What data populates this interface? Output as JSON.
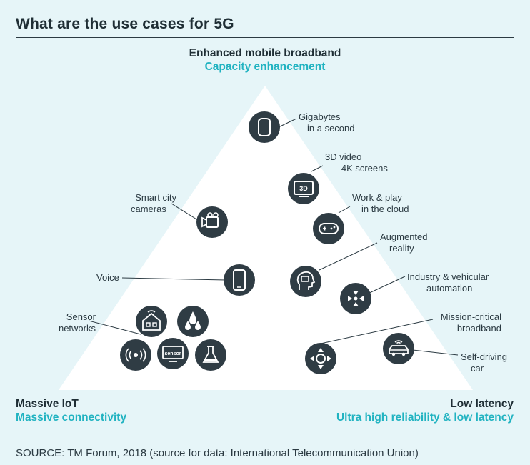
{
  "title": "What are the use cases for 5G",
  "source": "SOURCE: TM Forum, 2018 (source for data: International Telecommunication Union)",
  "corners": {
    "top": {
      "title": "Enhanced mobile broadband",
      "subtitle": "Capacity enhancement"
    },
    "left": {
      "title": "Massive IoT",
      "subtitle": "Massive connectivity"
    },
    "right": {
      "title": "Low latency",
      "subtitle": "Ultra high reliability & low latency"
    }
  },
  "use_cases": {
    "gigabytes": {
      "line1": "Gigabytes",
      "line2": "in a second",
      "icon": "cylinder-icon"
    },
    "video3d": {
      "line1": "3D video",
      "line2": "– 4K screens",
      "icon": "3d-screen-icon",
      "icon_text": "3D"
    },
    "work_play": {
      "line1": "Work & play",
      "line2": "in the cloud",
      "icon": "gamepad-icon"
    },
    "smart_city": {
      "line1": "Smart city",
      "line2": "cameras",
      "icon": "camera-icon"
    },
    "augmented": {
      "line1": "Augmented",
      "line2": "reality",
      "icon": "head-visor-icon"
    },
    "voice": {
      "line1": "Voice",
      "icon": "smartphone-icon"
    },
    "industry": {
      "line1": "Industry & vehicular",
      "line2": "automation",
      "icon": "arrows-in-icon"
    },
    "sensor": {
      "line1": "Sensor",
      "line2": "networks",
      "icon_sensor_text": "sensor"
    },
    "mission": {
      "line1": "Mission-critical",
      "line2": "broadband",
      "icon": "arrows-out-icon"
    },
    "self_driving": {
      "line1": "Self-driving",
      "line2": "car",
      "icon": "connected-car-icon"
    }
  },
  "colors": {
    "background": "#e6f5f8",
    "triangle": "#ffffff",
    "icon_circle": "#2f3c44",
    "accent_teal": "#21b3c1",
    "text_dark": "#1f2e35"
  }
}
